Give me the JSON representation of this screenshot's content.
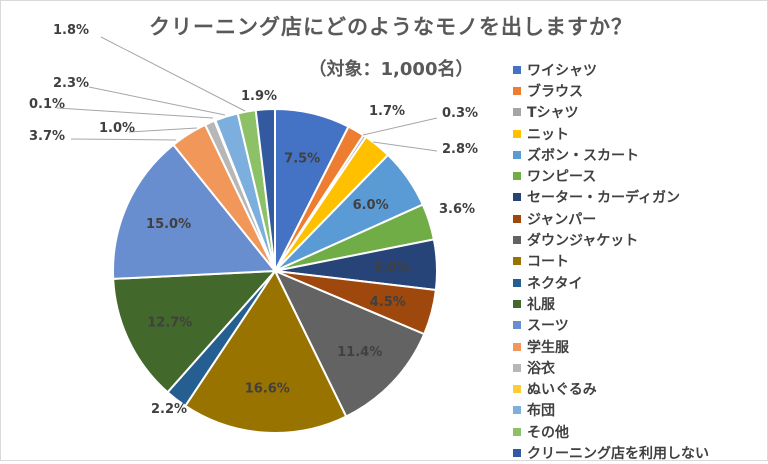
{
  "chart_data": {
    "type": "pie",
    "title": "クリーニング店にどのようなモノを出しますか？",
    "subtitle": "（対象：1,000名）",
    "legend_position": "right",
    "unit": "%",
    "categories": [
      "ワイシャツ",
      "ブラウス",
      "Tシャツ",
      "ニット",
      "ズボン・スカート",
      "ワンピース",
      "セーター・カーディガン",
      "ジャンパー",
      "ダウンジャケット",
      "コート",
      "ネクタイ",
      "礼服",
      "スーツ",
      "学生服",
      "浴衣",
      "ぬいぐるみ",
      "布団",
      "その他",
      "クリーニング店を利用しない"
    ],
    "values": [
      7.5,
      1.7,
      0.3,
      2.8,
      6.0,
      3.6,
      5.0,
      4.5,
      11.4,
      16.6,
      2.2,
      12.7,
      15.0,
      3.7,
      1.0,
      0.1,
      2.3,
      1.8,
      1.9
    ],
    "labels": [
      "7.5%",
      "1.7%",
      "0.3%",
      "2.8%",
      "6.0%",
      "3.6%",
      "5.0%",
      "4.5%",
      "11.4%",
      "16.6%",
      "2.2%",
      "12.7%",
      "15.0%",
      "3.7%",
      "1.0%",
      "0.1%",
      "2.3%",
      "1.8%",
      "1.9%"
    ],
    "colors": [
      "#4472C4",
      "#ED7D31",
      "#A5A5A5",
      "#FFC000",
      "#5B9BD5",
      "#70AD47",
      "#264478",
      "#9E480E",
      "#636363",
      "#997300",
      "#255E91",
      "#43682B",
      "#698ED0",
      "#F1975A",
      "#B7B7B7",
      "#FFCD33",
      "#7CAFDD",
      "#8CC168",
      "#335AA1"
    ]
  }
}
